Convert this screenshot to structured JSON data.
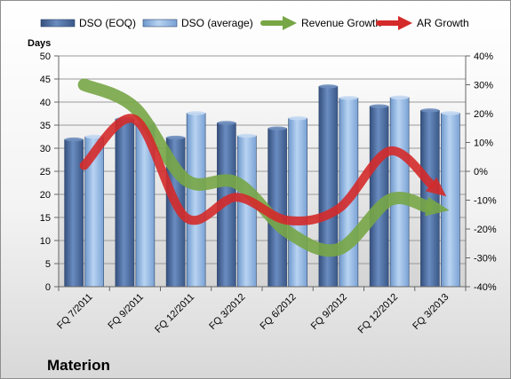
{
  "chart_data": {
    "type": "bar",
    "categories": [
      "FQ 7/2011",
      "FQ 9/2011",
      "FQ 12/2011",
      "FQ 3/2012",
      "FQ 6/2012",
      "FQ 9/2012",
      "FQ 12/2012",
      "FQ 3/2013"
    ],
    "series": [
      {
        "name": "DSO (EOQ)",
        "axis": "left",
        "kind": "bar",
        "color": "#4a6a9e",
        "values": [
          31.9,
          36.3,
          32.3,
          35.5,
          34.3,
          43.4,
          39.1,
          38.2
        ]
      },
      {
        "name": "DSO (average)",
        "axis": "left",
        "kind": "bar",
        "color": "#8fb4e0",
        "values": [
          32.5,
          35.5,
          37.6,
          32.7,
          36.5,
          40.9,
          41.0,
          37.6
        ]
      },
      {
        "name": "Revenue Growth",
        "axis": "right",
        "kind": "arrow-line",
        "color": "#77a646",
        "values": [
          0.3,
          0.22,
          -0.03,
          -0.04,
          -0.21,
          -0.27,
          -0.1,
          -0.13
        ]
      },
      {
        "name": "AR Growth",
        "axis": "right",
        "kind": "arrow-line",
        "color": "#d42a2a",
        "values": [
          0.02,
          0.18,
          -0.16,
          -0.09,
          -0.17,
          -0.13,
          0.07,
          -0.07
        ]
      }
    ],
    "title": "Materion",
    "ylabel": "Days",
    "ylim": [
      0,
      50
    ],
    "yticks": [
      "0",
      "5",
      "10",
      "15",
      "20",
      "25",
      "30",
      "35",
      "40",
      "45",
      "50"
    ],
    "y2lim": [
      -0.4,
      0.4
    ],
    "y2ticks": [
      "-40%",
      "-30%",
      "-20%",
      "-10%",
      "0%",
      "10%",
      "20%",
      "30%",
      "40%"
    ],
    "grid": true,
    "legend": "top"
  }
}
